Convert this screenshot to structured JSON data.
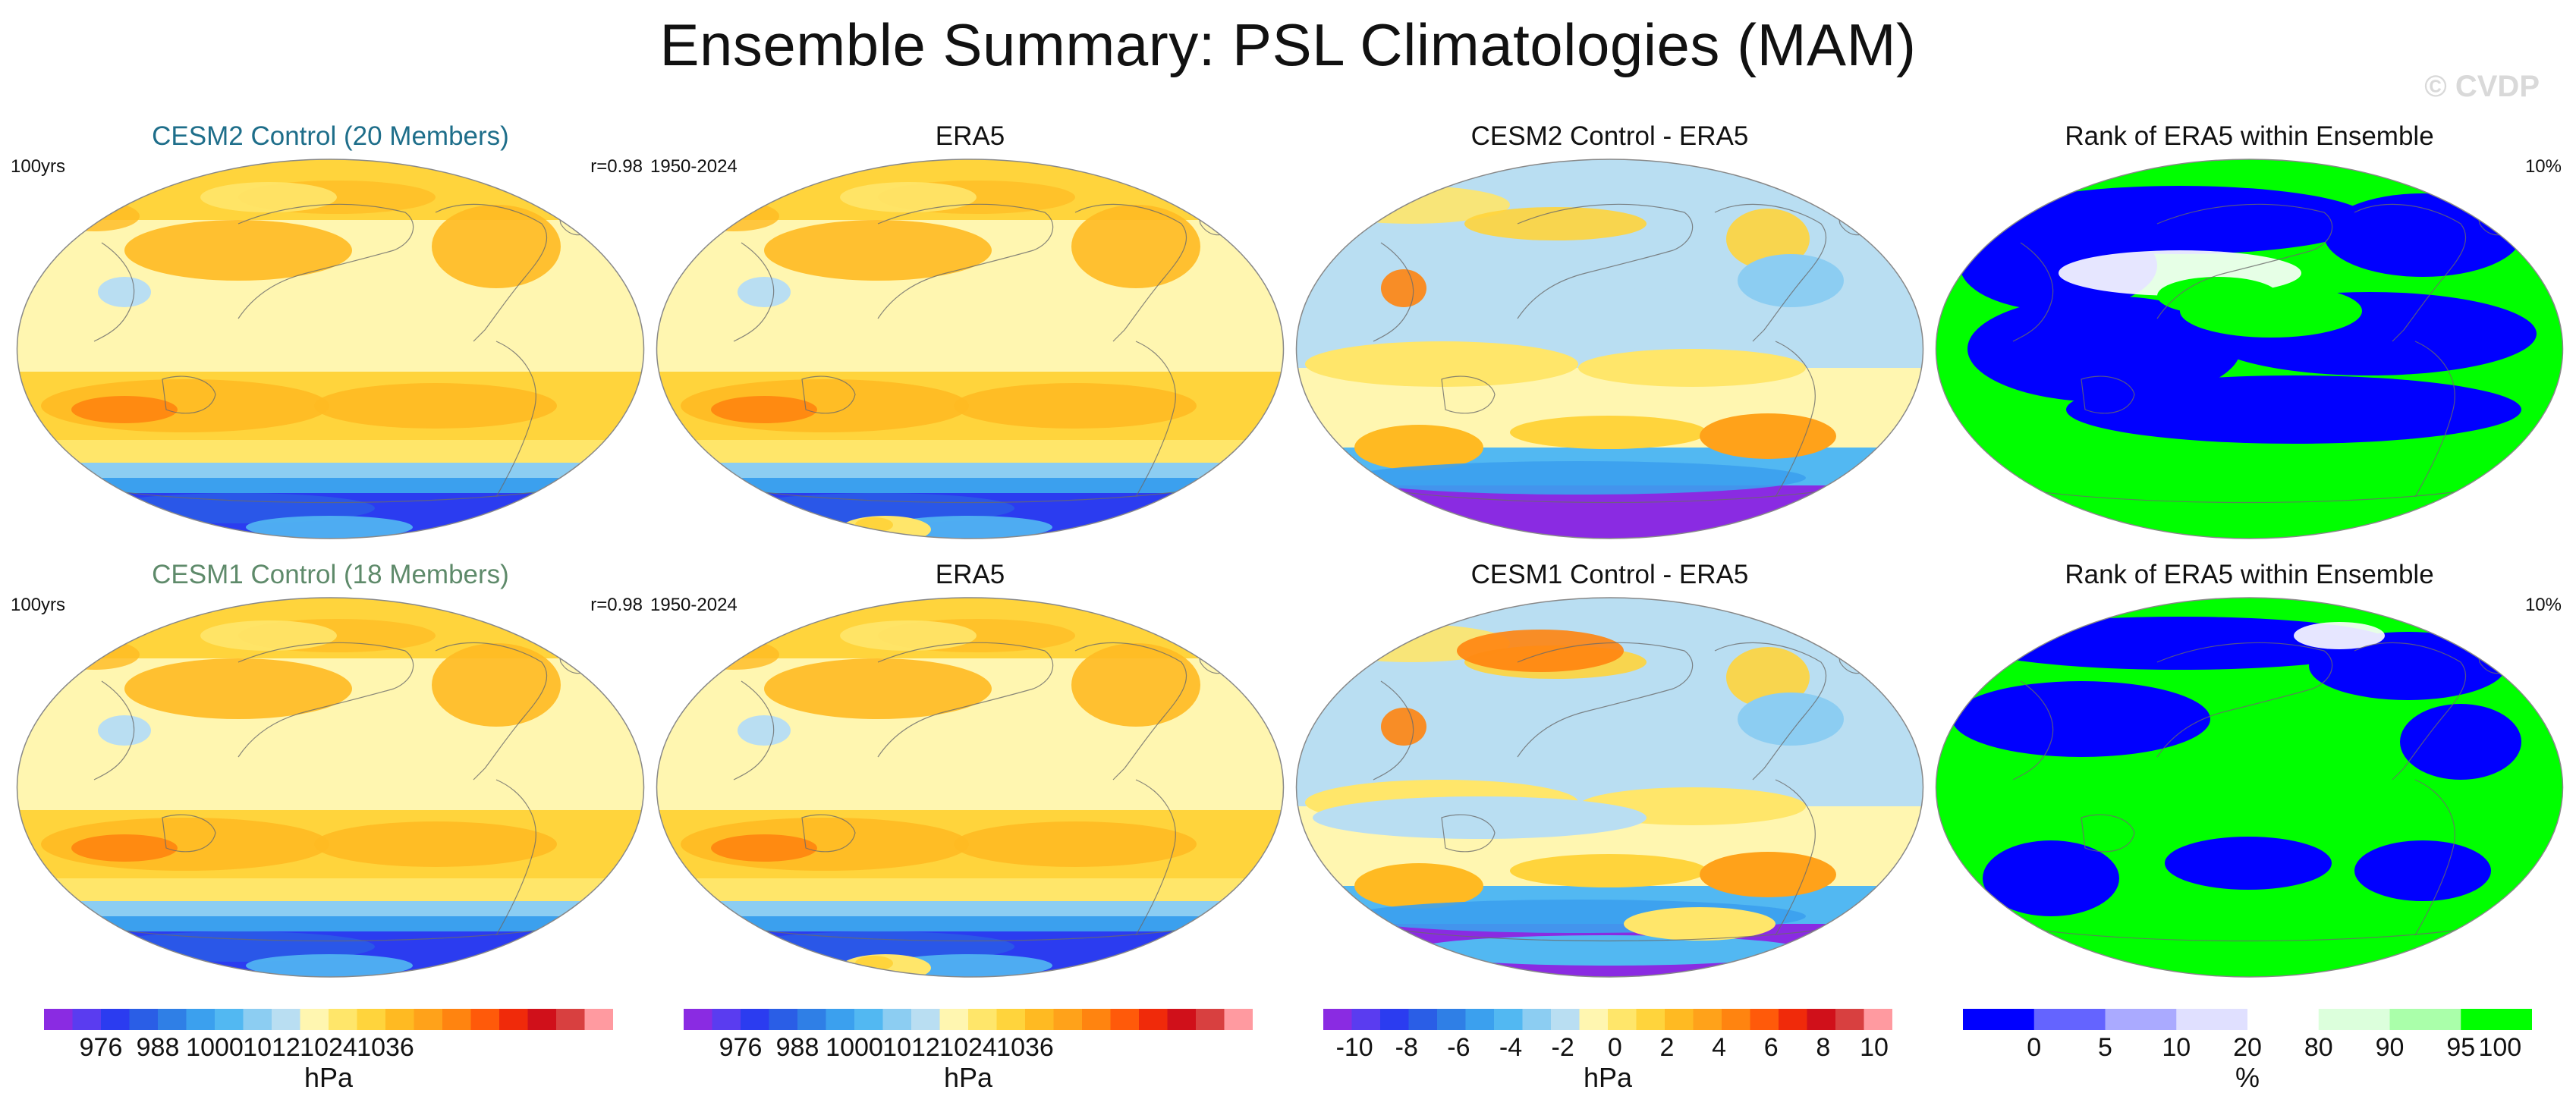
{
  "title": "Ensemble Summary: PSL Climatologies (MAM)",
  "watermark": "© CVDP",
  "colors": {
    "cesm2_title": "#1e6e8a",
    "cesm1_title": "#5e8a6a",
    "psl_scale": [
      "#8a2be2",
      "#5a3cf0",
      "#2b3cf0",
      "#2a5ee6",
      "#2f7fe6",
      "#3ba0ee",
      "#52b8f2",
      "#8ccdf2",
      "#b9def2",
      "#fff6b0",
      "#ffe66a",
      "#ffd43c",
      "#ffba22",
      "#ffa21a",
      "#ff8410",
      "#ff5a0a",
      "#f02a0a",
      "#d0101a",
      "#d84040",
      "#ff9aa0"
    ],
    "rank_scale": [
      "#0000ff",
      "#6464ff",
      "#aaaaff",
      "#e0e0ff",
      "#ffffff",
      "#dcffdc",
      "#aaffaa",
      "#00ff00"
    ]
  },
  "panels": [
    {
      "title": "CESM2 Control (20 Members)",
      "left": "100yrs",
      "right": "r=0.98",
      "kind": "clim",
      "title_color": "#1e6e8a"
    },
    {
      "title": "ERA5",
      "left": "1950-2024",
      "right": "",
      "kind": "clim_obs"
    },
    {
      "title": "CESM2 Control - ERA5",
      "left": "",
      "right": "",
      "kind": "diff"
    },
    {
      "title": "Rank of ERA5 within Ensemble",
      "left": "",
      "right": "10%",
      "kind": "rank"
    },
    {
      "title": "CESM1 Control (18 Members)",
      "left": "100yrs",
      "right": "r=0.98",
      "kind": "clim",
      "title_color": "#5e8a6a"
    },
    {
      "title": "ERA5",
      "left": "1950-2024",
      "right": "",
      "kind": "clim_obs"
    },
    {
      "title": "CESM1 Control - ERA5",
      "left": "",
      "right": "",
      "kind": "diff2"
    },
    {
      "title": "Rank of ERA5 within Ensemble",
      "left": "",
      "right": "10%",
      "kind": "rank2"
    }
  ],
  "colorbars": [
    {
      "unit": "hPa",
      "ticks": [
        "976",
        "988",
        "1000",
        "1012",
        "1024",
        "1036"
      ],
      "kind": "psl"
    },
    {
      "unit": "hPa",
      "ticks": [
        "976",
        "988",
        "1000",
        "1012",
        "1024",
        "1036"
      ],
      "kind": "psl"
    },
    {
      "unit": "hPa",
      "ticks": [
        "-10",
        "-8",
        "-6",
        "-4",
        "-2",
        "0",
        "2",
        "4",
        "6",
        "8",
        "10"
      ],
      "kind": "diff"
    },
    {
      "unit": "%",
      "ticks": [
        "0",
        "5",
        "10",
        "20",
        "80",
        "90",
        "95",
        "100"
      ],
      "kind": "rank"
    }
  ]
}
